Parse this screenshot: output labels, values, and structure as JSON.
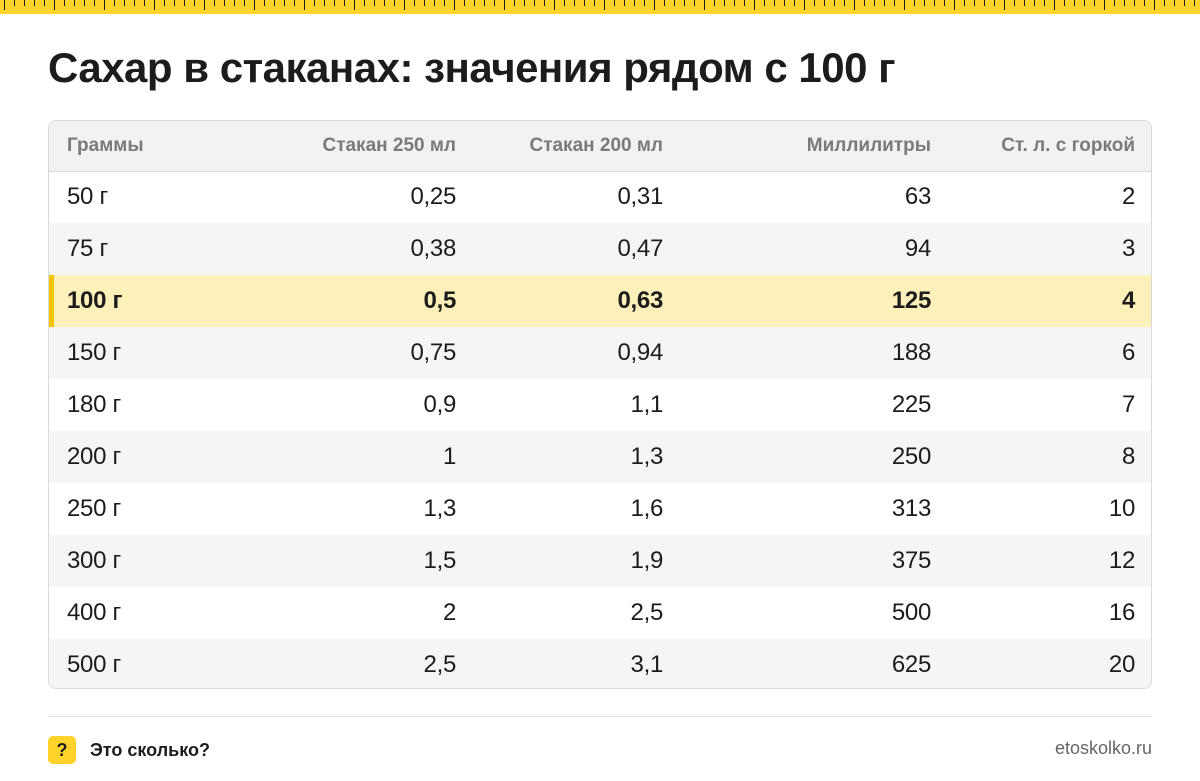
{
  "title": "Сахар в стаканах: значения рядом с 100 г",
  "colors": {
    "accent": "#fed42b",
    "highlight_row": "#fdf0b8",
    "highlight_bar": "#f5c400"
  },
  "table": {
    "headers": [
      "Граммы",
      "Стакан 250 мл",
      "Стакан 200 мл",
      "Миллилитры",
      "Ст. л. с горкой"
    ],
    "highlighted_row_index": 2,
    "rows": [
      [
        "50 г",
        "0,25",
        "0,31",
        "63",
        "2"
      ],
      [
        "75 г",
        "0,38",
        "0,47",
        "94",
        "3"
      ],
      [
        "100 г",
        "0,5",
        "0,63",
        "125",
        "4"
      ],
      [
        "150 г",
        "0,75",
        "0,94",
        "188",
        "6"
      ],
      [
        "180 г",
        "0,9",
        "1,1",
        "225",
        "7"
      ],
      [
        "200 г",
        "1",
        "1,3",
        "250",
        "8"
      ],
      [
        "250 г",
        "1,3",
        "1,6",
        "313",
        "10"
      ],
      [
        "300 г",
        "1,5",
        "1,9",
        "375",
        "12"
      ],
      [
        "400 г",
        "2",
        "2,5",
        "500",
        "16"
      ],
      [
        "500 г",
        "2,5",
        "3,1",
        "625",
        "20"
      ]
    ]
  },
  "footer": {
    "badge": "?",
    "brand": "Это сколько?",
    "site": "etoskolko.ru"
  }
}
